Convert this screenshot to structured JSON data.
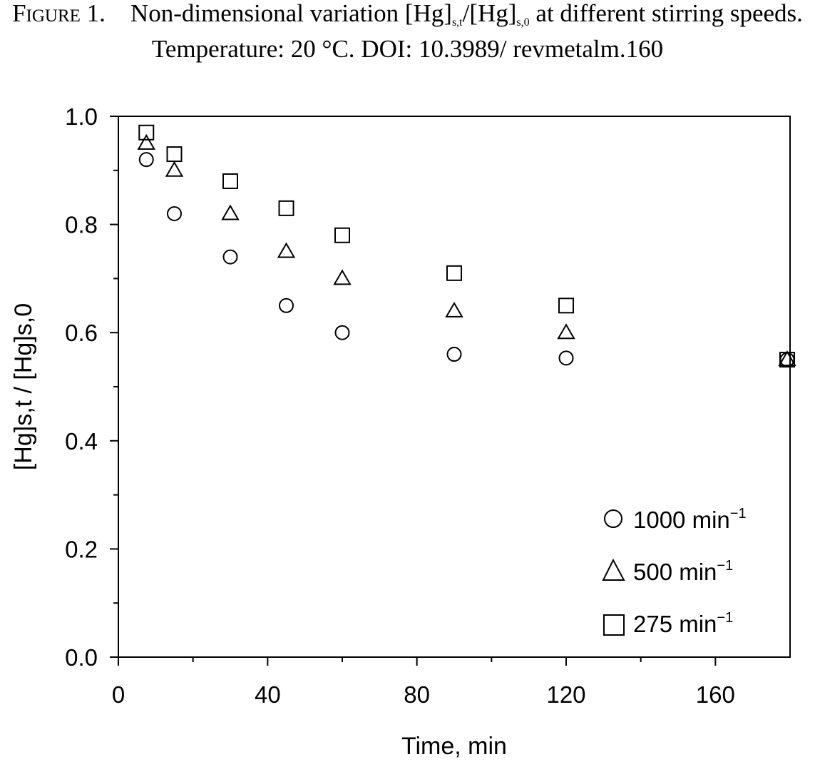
{
  "caption": {
    "figure_label": "Figure 1.",
    "text_part1": "Non-dimensional variation [Hg]",
    "sub1": "s,t",
    "text_part2": "/[Hg]",
    "sub2": "s,0",
    "text_part3": " at different stirring speeds. Temperature: 20 °C. DOI: 10.3989/ revmetalm.160"
  },
  "chart_data": {
    "type": "scatter",
    "xlabel": "Time, min",
    "ylabel": "[Hg]s,t / [Hg]s,0",
    "xlim": [
      0,
      180
    ],
    "ylim": [
      0,
      1.0
    ],
    "xticks": [
      0,
      40,
      80,
      120,
      160
    ],
    "xtick_labels": [
      "0",
      "40",
      "80",
      "120",
      "160"
    ],
    "yticks": [
      0,
      0.2,
      0.4,
      0.6,
      0.8,
      1.0
    ],
    "ytick_labels": [
      "0.0",
      "0.2",
      "0.4",
      "0.6",
      "0.8",
      "1.0"
    ],
    "grid": false,
    "legend_position": "bottom-right",
    "series": [
      {
        "name": "1000 min",
        "name_sup": "−1",
        "marker": "circle",
        "x": [
          7.5,
          15,
          30,
          45,
          60,
          90,
          120,
          180
        ],
        "y": [
          0.92,
          0.82,
          0.74,
          0.65,
          0.6,
          0.56,
          0.553,
          0.55
        ]
      },
      {
        "name": "500 min",
        "name_sup": "−1",
        "marker": "triangle",
        "x": [
          7.5,
          15,
          30,
          45,
          60,
          90,
          120,
          180
        ],
        "y": [
          0.95,
          0.9,
          0.82,
          0.75,
          0.7,
          0.64,
          0.6,
          0.55
        ]
      },
      {
        "name": "275 min",
        "name_sup": "−1",
        "marker": "square",
        "x": [
          7.5,
          15,
          30,
          45,
          60,
          90,
          120,
          180
        ],
        "y": [
          0.97,
          0.93,
          0.88,
          0.83,
          0.78,
          0.71,
          0.65,
          0.55
        ]
      }
    ]
  }
}
